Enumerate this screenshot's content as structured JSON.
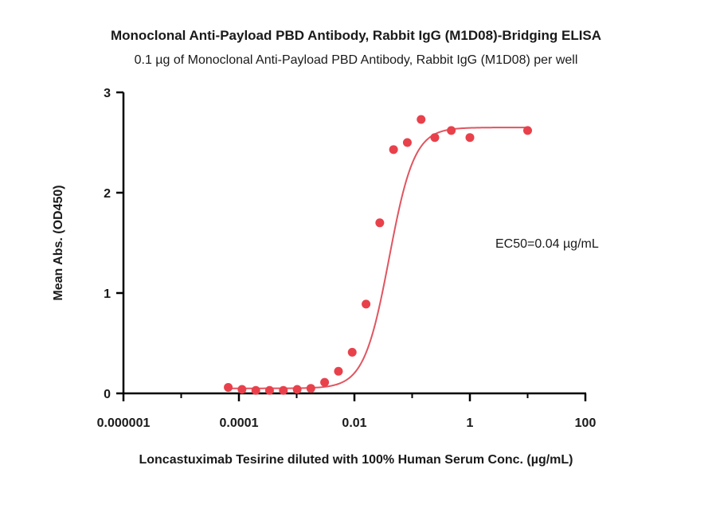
{
  "chart_data": {
    "type": "scatter",
    "title": "Monoclonal Anti-Payload PBD Antibody, Rabbit IgG (M1D08)-Bridging ELISA",
    "subtitle": "0.1 µg of Monoclonal Anti-Payload PBD Antibody, Rabbit IgG (M1D08) per well",
    "xlabel": "Loncastuximab Tesirine diluted with 100% Human Serum Conc. (µg/mL)",
    "ylabel": "Mean Abs. (OD450)",
    "x_scale": "log",
    "xlim": [
      1e-06,
      100
    ],
    "ylim": [
      0,
      3
    ],
    "x_ticks": [
      {
        "value": 1e-06,
        "label": "0.000001"
      },
      {
        "value": 0.0001,
        "label": "0.0001"
      },
      {
        "value": 0.01,
        "label": "0.01"
      },
      {
        "value": 1,
        "label": "1"
      },
      {
        "value": 100,
        "label": "100"
      }
    ],
    "y_ticks": [
      {
        "value": 0,
        "label": "0"
      },
      {
        "value": 1,
        "label": "1"
      },
      {
        "value": 2,
        "label": "2"
      },
      {
        "value": 3,
        "label": "3"
      }
    ],
    "annotation": "EC50=0.04 µg/mL",
    "fit": {
      "bottom": 0.05,
      "top": 2.65,
      "ec50": 0.04,
      "hill": 2.0
    },
    "color": "#e8414b",
    "curve_color": "#e05560",
    "series": [
      {
        "x": [
          6.53e-05,
          0.000113,
          0.000196,
          0.000339,
          0.000588,
          0.00102,
          0.00176,
          0.00305,
          0.00529,
          0.00916,
          0.0159,
          0.0275,
          0.0476,
          0.0825,
          0.143,
          0.247,
          0.476,
          1.0,
          10.0
        ],
        "y": [
          0.06,
          0.04,
          0.03,
          0.03,
          0.03,
          0.04,
          0.05,
          0.11,
          0.22,
          0.41,
          0.89,
          1.7,
          2.43,
          2.5,
          2.73,
          2.55,
          2.62,
          2.55,
          2.62
        ]
      }
    ]
  }
}
